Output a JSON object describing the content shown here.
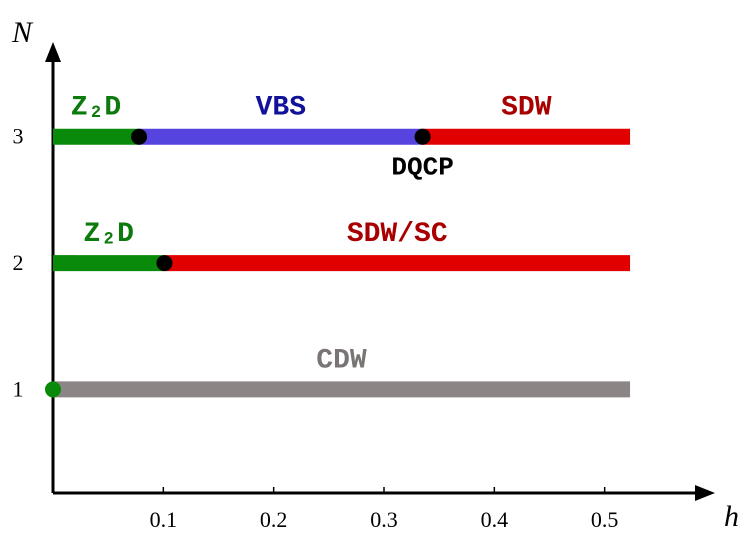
{
  "chart_data": {
    "type": "phase",
    "x_label": "h",
    "y_label": "N",
    "xlim": [
      0,
      0.6
    ],
    "ylim": [
      0.18,
      3.75
    ],
    "xticks": [
      0.1,
      0.2,
      0.3,
      0.4,
      0.5
    ],
    "yticks": [
      1,
      2,
      3
    ],
    "segments": [
      {
        "name": "Z₂D",
        "y": 3,
        "x": [
          0,
          0.078
        ],
        "color": "#0a8a0a",
        "label_color": "#0c7a0c"
      },
      {
        "name": "VBS",
        "y": 3,
        "x": [
          0.078,
          0.335
        ],
        "color": "#5544dd",
        "label_color": "#11119a"
      },
      {
        "name": "SDW",
        "y": 3,
        "x": [
          0.335,
          0.523
        ],
        "color": "#e00000",
        "label_color": "#a80000"
      },
      {
        "name": "Z₂D",
        "y": 2,
        "x": [
          0,
          0.101
        ],
        "color": "#0a8a0a",
        "label_color": "#0c7a0c"
      },
      {
        "name": "SDW/SC",
        "y": 2,
        "x": [
          0.101,
          0.523
        ],
        "color": "#e00000",
        "label_color": "#a80000"
      },
      {
        "name": "CDW",
        "y": 1,
        "x": [
          0,
          0.523
        ],
        "color": "#8c8585",
        "label_color": "#7a7474"
      }
    ],
    "points": [
      {
        "x": 0.078,
        "y": 3,
        "color": "#000000"
      },
      {
        "x": 0.335,
        "y": 3,
        "color": "#000000",
        "label": "DQCP"
      },
      {
        "x": 0.101,
        "y": 2,
        "color": "#000000"
      },
      {
        "x": 0,
        "y": 1,
        "color": "#0a8a0a"
      }
    ]
  }
}
